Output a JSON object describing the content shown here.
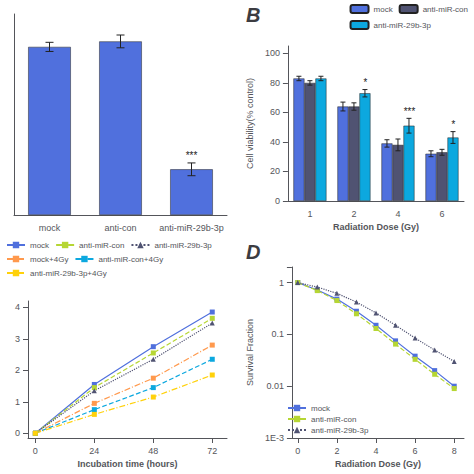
{
  "chart_data": [
    {
      "type": "bar",
      "categories": [
        "mock",
        "anti-con",
        "anti-miR-29b-3p"
      ],
      "values": [
        92,
        95,
        25
      ],
      "errors": [
        2.5,
        3.5,
        3.5
      ],
      "annotations": [
        null,
        null,
        "***"
      ],
      "ylim": [
        0,
        110
      ],
      "yticks": [],
      "tick_labels": "x",
      "grid": false
    },
    {
      "type": "bar",
      "title": "B",
      "xlabel": "Radiation Dose (Gy)",
      "ylabel": "Cell viability(% control)",
      "categories": [
        1,
        2,
        4,
        6
      ],
      "series": [
        {
          "name": "mock",
          "values": [
            83,
            64,
            39,
            32
          ],
          "errors": [
            1.5,
            3,
            2.5,
            2
          ]
        },
        {
          "name": "anti-miR-con",
          "values": [
            80,
            64,
            38,
            33
          ],
          "errors": [
            1.5,
            2.5,
            4,
            2
          ]
        },
        {
          "name": "anti-miR-29b-3p",
          "values": [
            83,
            73,
            51,
            43
          ],
          "errors": [
            1.5,
            2.5,
            5,
            4
          ],
          "annotations": [
            null,
            "*",
            "***",
            "*"
          ]
        }
      ],
      "ylim": [
        0,
        105
      ],
      "yticks": [
        0,
        20,
        40,
        60,
        80,
        100
      ],
      "legend": "upper right",
      "grid": false
    },
    {
      "type": "line",
      "xlabel": "Incubation time (hours)",
      "x": [
        0,
        24,
        48,
        72
      ],
      "series": [
        {
          "name": "mock",
          "values": [
            0,
            1.55,
            2.75,
            3.85
          ],
          "line_style": "solid",
          "marker": "square"
        },
        {
          "name": "anti-miR-con",
          "values": [
            0,
            1.45,
            2.55,
            3.65
          ],
          "line_style": "dashed",
          "marker": "square"
        },
        {
          "name": "anti-miR-29b-3p",
          "values": [
            0,
            1.35,
            2.35,
            3.5
          ],
          "line_style": "dotted",
          "marker": "triangle"
        },
        {
          "name": "mock+4Gy",
          "values": [
            0,
            0.95,
            1.75,
            2.8
          ],
          "line_style": "dashdot",
          "marker": "square"
        },
        {
          "name": "anti-miR-con+4Gy",
          "values": [
            0,
            0.75,
            1.45,
            2.35
          ],
          "line_style": "dashed",
          "marker": "square"
        },
        {
          "name": "anti-miR-29b-3p+4Gy",
          "values": [
            0,
            0.6,
            1.15,
            1.85
          ],
          "line_style": "dashdot",
          "marker": "square"
        }
      ],
      "xlim": [
        -3,
        78
      ],
      "xticks": [
        0,
        24,
        48,
        72
      ],
      "ylim": [
        -0.15,
        4.2
      ],
      "yticks": [
        0,
        1,
        2,
        3,
        4
      ],
      "legend": "upper left",
      "grid": false
    },
    {
      "type": "line",
      "title": "D",
      "log": "y",
      "xlabel": "Radiation Dose (Gy)",
      "ylabel": "Survival Fraction",
      "x": [
        0,
        1,
        2,
        3,
        4,
        5,
        6,
        7,
        8
      ],
      "series": [
        {
          "name": "mock",
          "values": [
            1.0,
            0.72,
            0.48,
            0.28,
            0.15,
            0.075,
            0.038,
            0.02,
            0.01
          ],
          "line_style": "solid",
          "marker": "square"
        },
        {
          "name": "anti-miR-con",
          "values": [
            1.0,
            0.7,
            0.45,
            0.25,
            0.13,
            0.065,
            0.033,
            0.017,
            0.009
          ],
          "line_style": "dashed",
          "marker": "square"
        },
        {
          "name": "anti-miR-29b-3p",
          "values": [
            1.0,
            0.82,
            0.62,
            0.42,
            0.26,
            0.15,
            0.085,
            0.05,
            0.03
          ],
          "line_style": "dotted",
          "marker": "triangle"
        }
      ],
      "xlim": [
        -0.3,
        8.5
      ],
      "xticks": [
        0,
        2,
        4,
        6,
        8
      ],
      "ylim": [
        0.001,
        2
      ],
      "yticks": [
        {
          "value": 0.001,
          "label": "1E-3"
        },
        0.01,
        0.1,
        1
      ],
      "legend": "lower left",
      "grid": false
    }
  ]
}
